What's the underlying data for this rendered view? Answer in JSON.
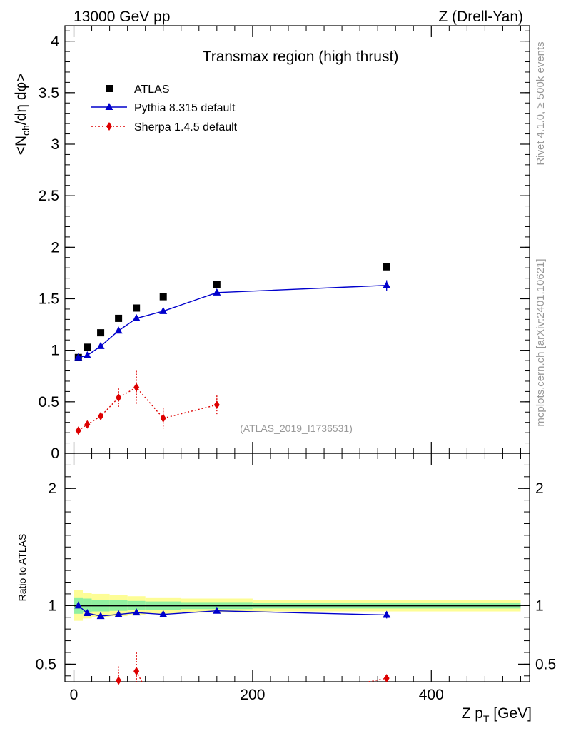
{
  "header": {
    "left": "13000 GeV pp",
    "right": "Z (Drell-Yan)"
  },
  "side": {
    "rivet": "Rivet 4.1.0, ≥ 500k events",
    "mcplots": "mcplots.cern.ch [arXiv:2401.10621]"
  },
  "colors": {
    "atlas": "#000000",
    "pythia": "#0000cc",
    "sherpa": "#dd0000",
    "band_outer": "#fdfd96",
    "band_inner": "#90f0a0"
  },
  "chart_data": [
    {
      "panel": "main",
      "type": "scatter",
      "title": "Transmax region (high thrust)",
      "ylabel_main": "<N",
      "ylabel_sub": "ch",
      "ylabel_tail": "/dη dφ>",
      "analysis_tag": "(ATLAS_2019_I1736531)",
      "xlim": [
        -10,
        510
      ],
      "ylim": [
        0,
        4.15
      ],
      "yticks": [
        0,
        0.5,
        1,
        1.5,
        2,
        2.5,
        3,
        3.5,
        4
      ],
      "ytick_labels": [
        "0",
        "0.5",
        "1",
        "1.5",
        "2",
        "2.5",
        "3",
        "3.5",
        "4"
      ],
      "legend": [
        {
          "key": "atlas",
          "label": "ATLAS"
        },
        {
          "key": "pythia",
          "label": "Pythia 8.315 default"
        },
        {
          "key": "sherpa",
          "label": "Sherpa 1.4.5 default"
        }
      ],
      "series": [
        {
          "name": "ATLAS",
          "key": "atlas",
          "x": [
            5,
            15,
            30,
            50,
            70,
            100,
            160,
            350
          ],
          "y": [
            0.93,
            1.03,
            1.17,
            1.31,
            1.41,
            1.52,
            1.64,
            1.81
          ]
        },
        {
          "name": "Pythia 8.315 default",
          "key": "pythia",
          "x": [
            5,
            15,
            30,
            50,
            70,
            100,
            160,
            350
          ],
          "y": [
            0.93,
            0.95,
            1.04,
            1.19,
            1.31,
            1.38,
            1.56,
            1.63
          ],
          "err": [
            0.01,
            0.01,
            0.01,
            0.015,
            0.02,
            0.015,
            0.02,
            0.05
          ]
        },
        {
          "name": "Sherpa 1.4.5 default",
          "key": "sherpa",
          "x": [
            5,
            15,
            30,
            50,
            70,
            100,
            160
          ],
          "y": [
            0.22,
            0.28,
            0.36,
            0.54,
            0.64,
            0.34,
            0.47
          ],
          "err": [
            0.02,
            0.03,
            0.03,
            0.09,
            0.16,
            0.1,
            0.09
          ]
        }
      ]
    },
    {
      "panel": "ratio",
      "type": "line",
      "ylabel": "Ratio to ATLAS",
      "xlabel_main": "Z p",
      "xlabel_sub": "T",
      "xlabel_tail": " [GeV]",
      "xlim": [
        -10,
        510
      ],
      "ylim": [
        0.35,
        2.3
      ],
      "xticks": [
        0,
        200,
        400
      ],
      "xtick_labels": [
        "0",
        "200",
        "400"
      ],
      "yticks": [
        0.5,
        1,
        2
      ],
      "ytick_labels": [
        "0.5",
        "1",
        "2"
      ],
      "bands": {
        "x_edges": [
          0,
          10,
          20,
          40,
          60,
          80,
          120,
          200,
          500
        ],
        "outer": [
          0.13,
          0.11,
          0.1,
          0.09,
          0.08,
          0.07,
          0.06,
          0.05
        ],
        "inner": [
          0.07,
          0.06,
          0.05,
          0.045,
          0.04,
          0.035,
          0.03,
          0.025
        ]
      },
      "series": [
        {
          "name": "Pythia 8.315 default",
          "key": "pythia",
          "x": [
            5,
            15,
            30,
            50,
            70,
            100,
            160,
            350
          ],
          "y": [
            1.0,
            0.935,
            0.91,
            0.925,
            0.94,
            0.925,
            0.955,
            0.92
          ],
          "err": [
            0.01,
            0.01,
            0.01,
            0.012,
            0.015,
            0.01,
            0.012,
            0.03
          ]
        },
        {
          "name": "Sherpa 1.4.5 default",
          "key": "sherpa",
          "x": [
            50,
            70,
            350
          ],
          "y": [
            0.36,
            0.44,
            0.38
          ],
          "err": [
            0.12,
            0.16,
            0.03
          ]
        }
      ]
    }
  ]
}
